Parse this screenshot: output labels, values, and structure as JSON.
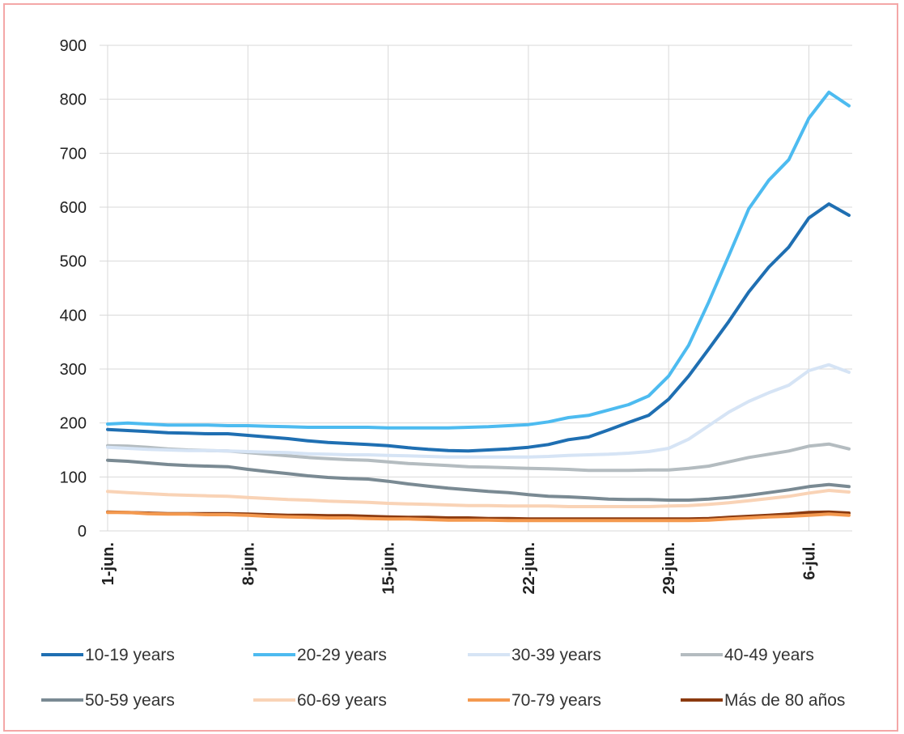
{
  "chart_data": {
    "type": "line",
    "title": "",
    "xlabel": "",
    "ylabel": "",
    "ylim": [
      0,
      900
    ],
    "y_ticks": [
      0,
      100,
      200,
      300,
      400,
      500,
      600,
      700,
      800,
      900
    ],
    "grid": "vertical and horizontal",
    "legend_position": "bottom",
    "x": [
      "1-jun.",
      "2-jun.",
      "3-jun.",
      "4-jun.",
      "5-jun.",
      "6-jun.",
      "7-jun.",
      "8-jun.",
      "9-jun.",
      "10-jun.",
      "11-jun.",
      "12-jun.",
      "13-jun.",
      "14-jun.",
      "15-jun.",
      "16-jun.",
      "17-jun.",
      "18-jun.",
      "19-jun.",
      "20-jun.",
      "21-jun.",
      "22-jun.",
      "23-jun.",
      "24-jun.",
      "25-jun.",
      "26-jun.",
      "27-jun.",
      "28-jun.",
      "29-jun.",
      "30-jun.",
      "1-jul.",
      "2-jul.",
      "3-jul.",
      "4-jul.",
      "5-jul.",
      "6-jul.",
      "7-jul.",
      "8-jul."
    ],
    "x_tick_labels": [
      "1-jun.",
      "8-jun.",
      "15-jun.",
      "22-jun.",
      "29-jun.",
      "6-jul."
    ],
    "x_tick_indices": [
      0,
      7,
      14,
      21,
      28,
      35
    ],
    "series": [
      {
        "name": "10-19 years",
        "color": "#1f6fb2",
        "values": [
          188,
          186,
          184,
          182,
          181,
          180,
          180,
          177,
          174,
          171,
          167,
          164,
          162,
          160,
          158,
          154,
          151,
          149,
          148,
          150,
          152,
          155,
          160,
          169,
          174,
          187,
          201,
          214,
          244,
          287,
          337,
          388,
          443,
          489,
          526,
          580,
          606,
          585
        ]
      },
      {
        "name": "20-29 years",
        "color": "#4dbbf0",
        "values": [
          198,
          200,
          198,
          196,
          196,
          196,
          195,
          195,
          194,
          193,
          192,
          192,
          192,
          192,
          191,
          191,
          191,
          191,
          192,
          193,
          195,
          197,
          202,
          210,
          214,
          224,
          234,
          250,
          287,
          344,
          424,
          510,
          597,
          650,
          688,
          765,
          813,
          788
        ]
      },
      {
        "name": "30-39 years",
        "color": "#d6e4f5",
        "values": [
          155,
          153,
          151,
          150,
          149,
          149,
          148,
          147,
          146,
          145,
          143,
          142,
          141,
          141,
          140,
          139,
          138,
          137,
          137,
          137,
          137,
          137,
          138,
          140,
          141,
          142,
          144,
          147,
          153,
          170,
          195,
          220,
          240,
          256,
          270,
          297,
          308,
          294
        ]
      },
      {
        "name": "40-49 years",
        "color": "#b4bcc0",
        "values": [
          158,
          157,
          155,
          152,
          150,
          149,
          148,
          145,
          142,
          139,
          136,
          134,
          132,
          131,
          128,
          125,
          123,
          121,
          119,
          118,
          117,
          116,
          115,
          114,
          112,
          112,
          112,
          113,
          113,
          116,
          120,
          128,
          136,
          142,
          148,
          157,
          161,
          152
        ]
      },
      {
        "name": "50-59 years",
        "color": "#7a8a93",
        "values": [
          131,
          129,
          126,
          123,
          121,
          120,
          119,
          114,
          110,
          106,
          102,
          99,
          97,
          96,
          92,
          87,
          83,
          79,
          76,
          73,
          71,
          67,
          64,
          63,
          61,
          59,
          58,
          58,
          57,
          57,
          59,
          62,
          66,
          71,
          76,
          82,
          86,
          82
        ]
      },
      {
        "name": "60-69 years",
        "color": "#f9d3b6",
        "values": [
          73,
          71,
          69,
          67,
          66,
          65,
          64,
          62,
          60,
          58,
          57,
          55,
          54,
          53,
          51,
          50,
          49,
          48,
          47,
          47,
          46,
          46,
          46,
          45,
          45,
          45,
          45,
          45,
          46,
          47,
          49,
          52,
          56,
          60,
          64,
          70,
          75,
          72
        ]
      },
      {
        "name": "70-79 years",
        "color": "#f4994f",
        "values": [
          34,
          34,
          32,
          31,
          31,
          30,
          30,
          29,
          27,
          26,
          25,
          24,
          24,
          23,
          22,
          22,
          21,
          20,
          20,
          20,
          19,
          19,
          19,
          19,
          19,
          19,
          19,
          19,
          19,
          19,
          20,
          22,
          24,
          26,
          27,
          29,
          31,
          29
        ]
      },
      {
        "name": "Más de 80 años",
        "color": "#8b3a0f",
        "values": [
          35,
          34,
          33,
          32,
          32,
          32,
          32,
          31,
          30,
          29,
          29,
          28,
          28,
          27,
          26,
          25,
          25,
          24,
          24,
          23,
          23,
          22,
          22,
          22,
          22,
          22,
          22,
          22,
          22,
          22,
          23,
          25,
          27,
          29,
          31,
          34,
          35,
          33
        ]
      }
    ]
  }
}
